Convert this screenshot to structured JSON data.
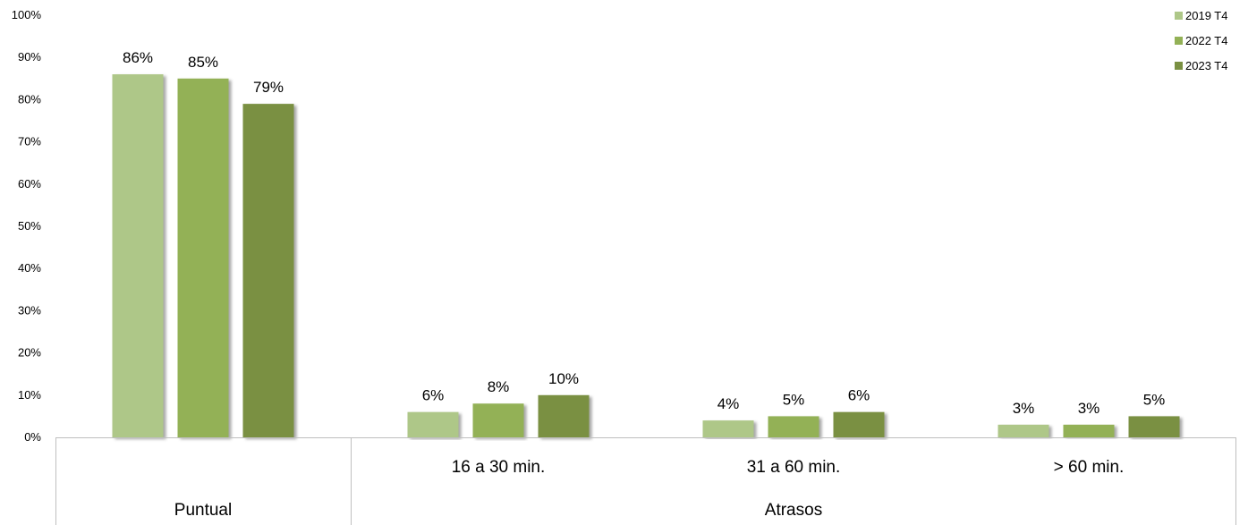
{
  "chart_data": {
    "type": "bar",
    "categories": [
      "Puntual",
      "16 a 30 min.",
      "31 a 60 min.",
      "> 60 min."
    ],
    "group_labels": [
      {
        "label": "Puntual",
        "categories": [
          "Puntual"
        ]
      },
      {
        "label": "Atrasos",
        "categories": [
          "16 a 30 min.",
          "31 a 60 min.",
          "> 60 min."
        ]
      }
    ],
    "series": [
      {
        "name": "2019 T4",
        "color": "#aec788",
        "values": [
          86,
          6,
          4,
          3
        ]
      },
      {
        "name": "2022 T4",
        "color": "#93b156",
        "values": [
          85,
          8,
          5,
          3
        ]
      },
      {
        "name": "2023 T4",
        "color": "#7a9042",
        "values": [
          79,
          10,
          6,
          5
        ]
      }
    ],
    "data_labels": [
      [
        "86%",
        "6%",
        "4%",
        "3%"
      ],
      [
        "85%",
        "8%",
        "5%",
        "3%"
      ],
      [
        "79%",
        "10%",
        "6%",
        "5%"
      ]
    ],
    "yticks": [
      "0%",
      "10%",
      "20%",
      "30%",
      "40%",
      "50%",
      "60%",
      "70%",
      "80%",
      "90%",
      "100%"
    ],
    "ylim": [
      0,
      100
    ],
    "grid": false,
    "legend": "top-right",
    "title": "",
    "xlabel": "",
    "ylabel": ""
  }
}
